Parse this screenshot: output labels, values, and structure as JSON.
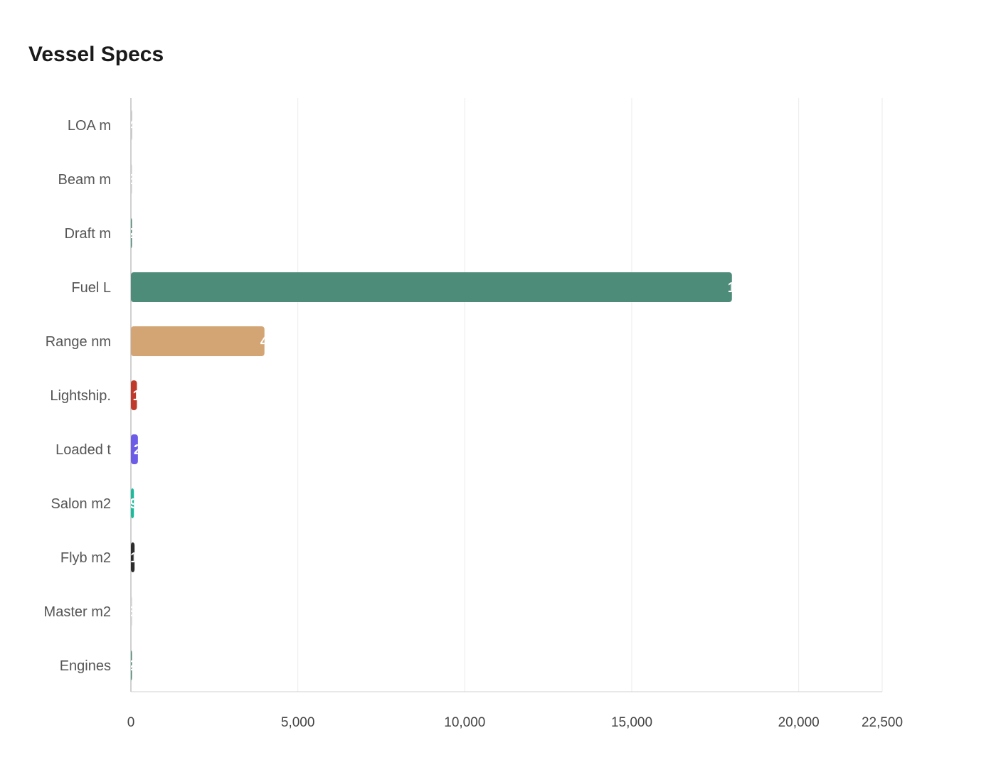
{
  "title": "Vessel Specs",
  "chart_data": {
    "type": "bar",
    "orientation": "horizontal",
    "title": "Vessel Specs",
    "categories": [
      "LOA m",
      "Beam m",
      "Draft m",
      "Fuel L",
      "Range nm",
      "Lightship.",
      "Loaded t",
      "Salon m2",
      "Flyb m2",
      "Master m2",
      "Engines"
    ],
    "values": [
      40,
      8,
      2.5,
      18000,
      4000,
      180,
      210,
      90,
      110,
      35,
      2
    ],
    "colors": [
      "#c8c8c8",
      "#c8c8c8",
      "#4e8c7a",
      "#4e8c7a",
      "#d4a574",
      "#c0392b",
      "#6c5ce7",
      "#1abc9c",
      "#2d2d2d",
      "#d0d0d0",
      "#4e8c7a"
    ],
    "xlim": [
      0,
      22500
    ],
    "xticks": [
      0,
      5000,
      10000,
      15000,
      20000,
      22500
    ],
    "xtick_labels": [
      "0",
      "5,000",
      "10,000",
      "15,000",
      "20,000",
      "22,500"
    ],
    "grid": true,
    "xlabel": "",
    "ylabel": ""
  }
}
